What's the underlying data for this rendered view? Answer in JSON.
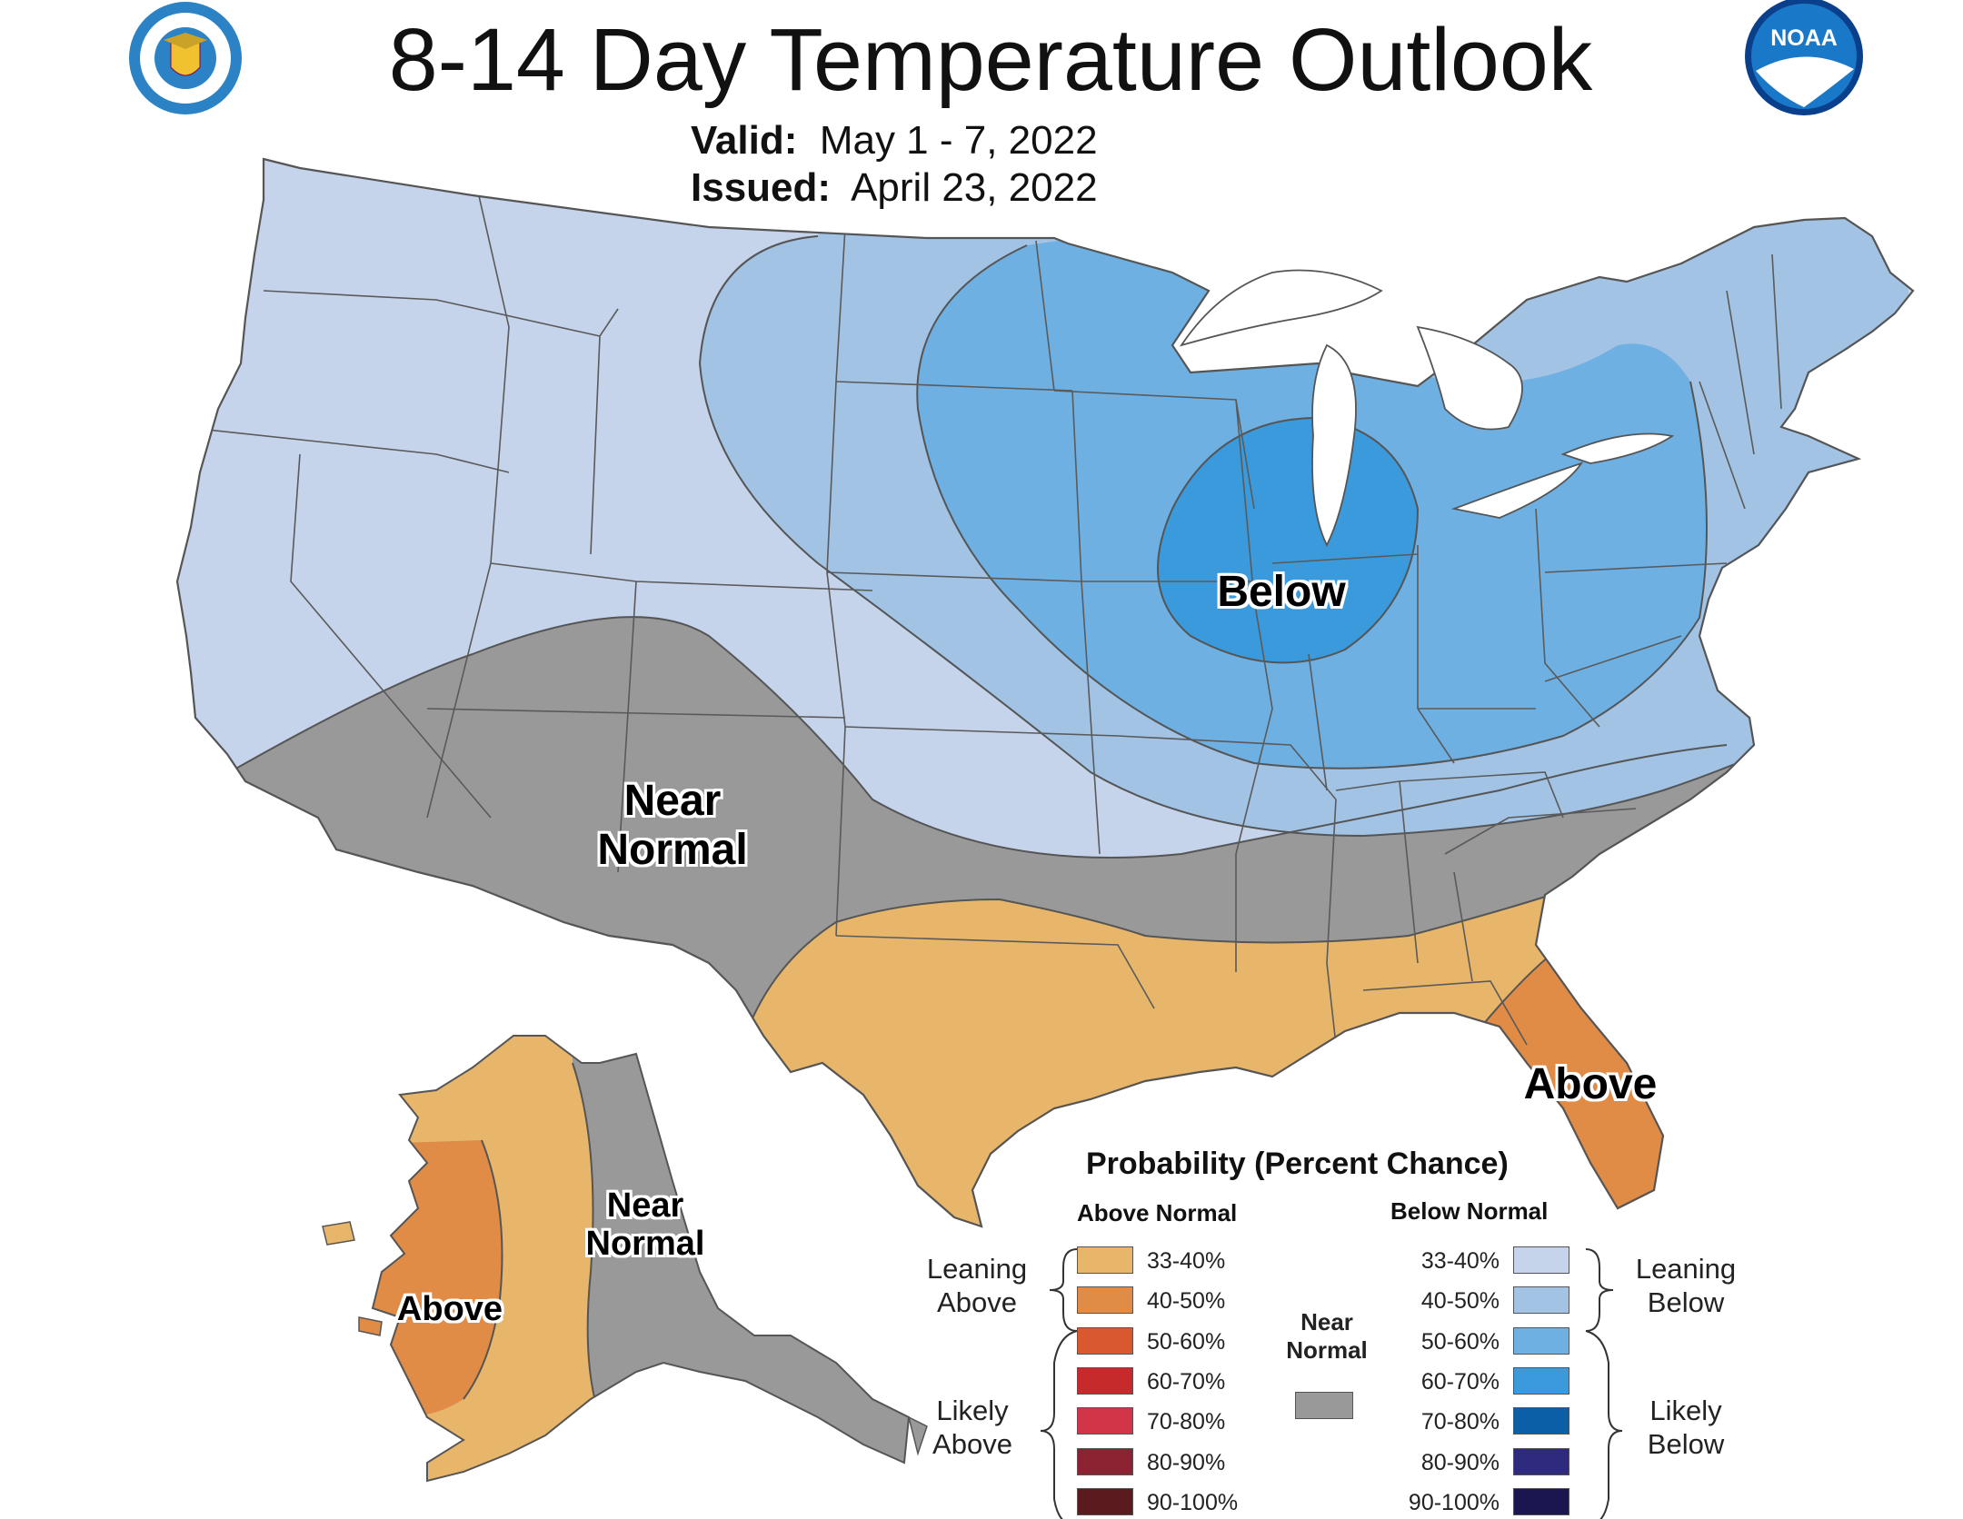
{
  "header": {
    "title": "8-14 Day Temperature Outlook",
    "valid_label": "Valid:",
    "valid_value": "May 1 - 7, 2022",
    "issued_label": "Issued:",
    "issued_value": "April 23, 2022",
    "left_logo": "department-of-commerce-seal",
    "right_logo_text": "NOAA"
  },
  "map_labels": {
    "below": "Below",
    "near_normal_line1": "Near",
    "near_normal_line2": "Normal",
    "above_fl": "Above",
    "ak_near_line1": "Near",
    "ak_near_line2": "Normal",
    "ak_above": "Above"
  },
  "colors": {
    "above_33_40": "#E8B66A",
    "above_40_50": "#E08C47",
    "above_50_60": "#D9582F",
    "above_60_70": "#C72A2A",
    "above_70_80": "#D23448",
    "above_80_90": "#8B2332",
    "above_90_100": "#5A1A1E",
    "near_normal": "#999999",
    "below_33_40": "#C5D3EB",
    "below_40_50": "#A2C3E3",
    "below_50_60": "#6FB0E3",
    "below_60_70": "#3A9ADB",
    "below_70_80": "#0B5FA6",
    "below_80_90": "#2E2A7D",
    "below_90_100": "#1B1650",
    "water": "#ffffff",
    "border": "#555555"
  },
  "legend": {
    "title": "Probability (Percent Chance)",
    "above_header": "Above Normal",
    "below_header": "Below Normal",
    "near_label_line1": "Near",
    "near_label_line2": "Normal",
    "leaning_above_line1": "Leaning",
    "leaning_above_line2": "Above",
    "likely_above_line1": "Likely",
    "likely_above_line2": "Above",
    "leaning_below_line1": "Leaning",
    "leaning_below_line2": "Below",
    "likely_below_line1": "Likely",
    "likely_below_line2": "Below",
    "above_bins": [
      "33-40%",
      "40-50%",
      "50-60%",
      "60-70%",
      "70-80%",
      "80-90%",
      "90-100%"
    ],
    "below_bins": [
      "33-40%",
      "40-50%",
      "50-60%",
      "60-70%",
      "70-80%",
      "80-90%",
      "90-100%"
    ]
  }
}
